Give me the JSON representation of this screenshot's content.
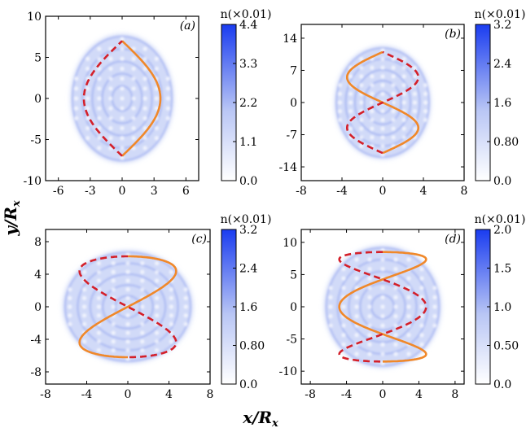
{
  "figure": {
    "xlabel": "x/R",
    "xlabel_sub": "x",
    "ylabel": "y/R",
    "ylabel_sub": "x"
  },
  "colors": {
    "cmap_low": "#ffffff",
    "cmap_high": "#1a3cf0",
    "solid_curve": "#f0882a",
    "dashed_curve": "#d4202a"
  },
  "chart_data": [
    {
      "type": "heatmap",
      "panel": "(a)",
      "xlim": [
        -7.2,
        7.2
      ],
      "ylim": [
        -10,
        10
      ],
      "xticks": [
        -6,
        -3,
        0,
        3,
        6
      ],
      "yticks": [
        -10,
        -5,
        0,
        5,
        10
      ],
      "colorbar": {
        "label": "n(×0.01)",
        "range": [
          0.0,
          4.4
        ],
        "ticks": [
          "0.0",
          "1.1",
          "2.2",
          "3.3",
          "4.4"
        ]
      },
      "curves": [
        {
          "style": "solid",
          "color": "orange",
          "amp": 3.6,
          "freq": 1,
          "yrange": [
            -7,
            7
          ]
        },
        {
          "style": "dashed",
          "color": "red",
          "amp": -3.6,
          "freq": 1,
          "yrange": [
            -7,
            7
          ]
        }
      ]
    },
    {
      "type": "heatmap",
      "panel": "(b)",
      "xlim": [
        -8,
        8
      ],
      "ylim": [
        -17,
        17
      ],
      "xticks": [
        -8,
        -4,
        0,
        4,
        8
      ],
      "yticks": [
        -14,
        -7,
        0,
        7,
        14
      ],
      "colorbar": {
        "label": "n(×0.01)",
        "range": [
          0.0,
          3.2
        ],
        "ticks": [
          "0.0",
          "0.80",
          "1.6",
          "2.4",
          "3.2"
        ]
      },
      "curves": [
        {
          "style": "solid",
          "color": "orange",
          "amp": 3.5,
          "freq": 2,
          "yrange": [
            -11,
            11
          ]
        },
        {
          "style": "dashed",
          "color": "red",
          "amp": -3.5,
          "freq": 2,
          "yrange": [
            -11,
            11
          ]
        }
      ]
    },
    {
      "type": "heatmap",
      "panel": "(c)",
      "xlim": [
        -8,
        8
      ],
      "ylim": [
        -9.5,
        9.5
      ],
      "xticks": [
        -8,
        -4,
        0,
        4,
        8
      ],
      "yticks": [
        -8,
        -4,
        0,
        4,
        8
      ],
      "colorbar": {
        "label": "n(×0.01)",
        "range": [
          0.0,
          3.2
        ],
        "ticks": [
          "0.0",
          "0.80",
          "1.6",
          "2.4",
          "3.2"
        ]
      },
      "curves": [
        {
          "style": "solid",
          "color": "orange",
          "type": "cos",
          "amp": 4.7,
          "yrange": [
            -6.2,
            6.2
          ]
        },
        {
          "style": "dashed",
          "color": "red",
          "type": "cos",
          "amp": -4.7,
          "yrange": [
            -6.2,
            6.2
          ]
        }
      ]
    },
    {
      "type": "heatmap",
      "panel": "(d)",
      "xlim": [
        -9,
        9
      ],
      "ylim": [
        -12,
        12
      ],
      "xticks": [
        -8,
        -4,
        0,
        4,
        8
      ],
      "yticks": [
        -10,
        -5,
        0,
        5,
        10
      ],
      "colorbar": {
        "label": "n(×0.01)",
        "range": [
          0.0,
          2.0
        ],
        "ticks": [
          "0.0",
          "0.50",
          "1.0",
          "1.5",
          "2.0"
        ]
      },
      "curves": [
        {
          "style": "solid",
          "color": "orange",
          "type": "cos3",
          "amp": 4.8,
          "yrange": [
            -8.5,
            8.5
          ]
        },
        {
          "style": "dashed",
          "color": "red",
          "type": "cos3",
          "amp": -4.8,
          "yrange": [
            -8.5,
            8.5
          ]
        }
      ]
    }
  ]
}
